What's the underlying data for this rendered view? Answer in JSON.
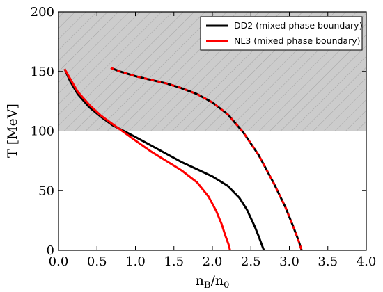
{
  "chart_data": {
    "type": "line",
    "xlabel": "n_B/n_0",
    "ylabel": "T [MeV]",
    "xlim": [
      0.0,
      4.0
    ],
    "ylim": [
      0,
      200
    ],
    "xticks": [
      "0.0",
      "0.5",
      "1.0",
      "1.5",
      "2.0",
      "2.5",
      "3.0",
      "3.5",
      "4.0"
    ],
    "yticks": [
      "0",
      "50",
      "100",
      "150",
      "200"
    ],
    "grid": false,
    "legend_position": "top-right",
    "shaded_region": {
      "y_from": 100,
      "y_to": 200,
      "pattern": "hatched",
      "color": "#cccccc"
    },
    "series": [
      {
        "name": "DD2 (mixed phase boundary)",
        "color": "#000000",
        "x": [
          0.08,
          0.15,
          0.25,
          0.4,
          0.55,
          0.7,
          0.85,
          1.0,
          1.2,
          1.4,
          1.6,
          1.8,
          2.0,
          2.2,
          2.35,
          2.45,
          2.55,
          2.6,
          2.64,
          2.67
        ],
        "y": [
          152,
          142,
          131,
          120,
          112,
          105,
          100,
          95,
          88,
          81,
          74,
          68,
          62,
          54,
          44,
          34,
          20,
          12,
          5,
          0
        ]
      },
      {
        "name": "NL3 (mixed phase boundary)",
        "color": "#ff0000",
        "x": [
          0.08,
          0.15,
          0.25,
          0.4,
          0.55,
          0.7,
          0.85,
          1.0,
          1.2,
          1.4,
          1.6,
          1.8,
          1.95,
          2.05,
          2.12,
          2.17,
          2.21,
          2.23
        ],
        "y": [
          152,
          144,
          133,
          122,
          113,
          106,
          99,
          92,
          83,
          75,
          67,
          57,
          45,
          33,
          22,
          12,
          5,
          0
        ]
      },
      {
        "name": "",
        "color": "#000000",
        "dash_color": "#ff0000",
        "x": [
          0.68,
          0.8,
          1.0,
          1.2,
          1.4,
          1.6,
          1.8,
          2.0,
          2.2,
          2.4,
          2.6,
          2.8,
          2.95,
          3.05,
          3.12,
          3.16
        ],
        "y": [
          153,
          150,
          146,
          143,
          140,
          136,
          131,
          124,
          114,
          99,
          80,
          56,
          36,
          20,
          8,
          0
        ]
      }
    ]
  }
}
